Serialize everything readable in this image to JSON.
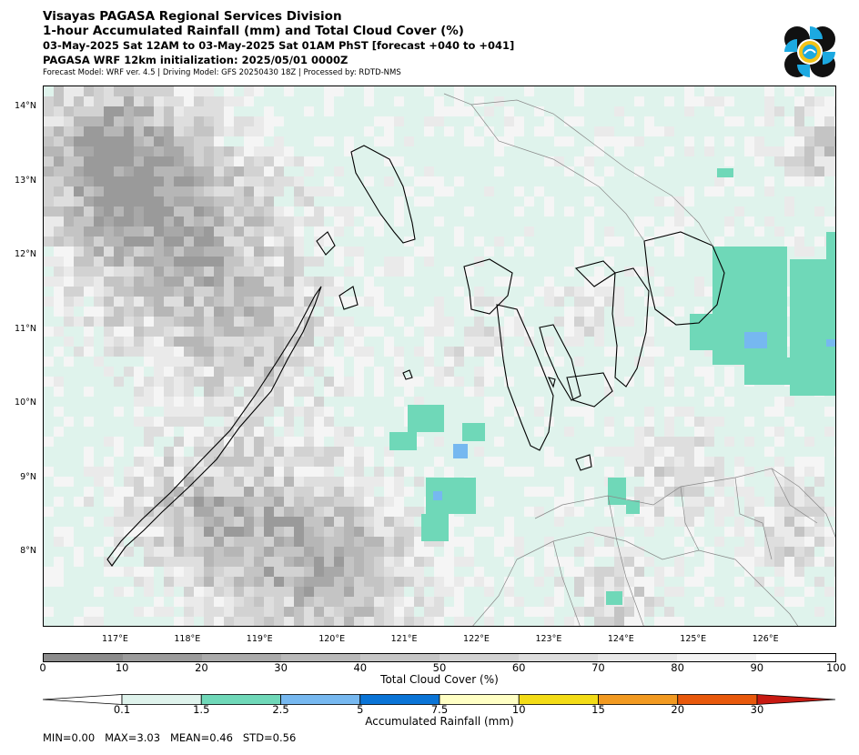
{
  "header": {
    "line1": "Visayas PAGASA Regional Services Division",
    "line2": "1-hour Accumulated Rainfall (mm) and Total Cloud Cover (%)",
    "line3": "03-May-2025 Sat 12AM to 03-May-2025 Sat 01AM PhST [forecast +040 to +041]",
    "line4": "PAGASA WRF 12km initialization: 2025/05/01 0000Z",
    "line5": "Forecast Model: WRF ver. 4.5 | Driving Model: GFS 20250430 18Z | Processed by: RDTD-NMS"
  },
  "logo": {
    "icon": "pagasa-logo-icon"
  },
  "map": {
    "lat_labels": [
      "14°N",
      "13°N",
      "12°N",
      "11°N",
      "10°N",
      "9°N",
      "8°N"
    ],
    "lon_labels": [
      "117°E",
      "118°E",
      "119°E",
      "120°E",
      "121°E",
      "122°E",
      "123°E",
      "124°E",
      "125°E",
      "126°E"
    ],
    "lat_range": [
      7.0,
      14.3
    ],
    "lon_range": [
      116.0,
      126.98
    ],
    "colors": {
      "background": "#dff3ec",
      "rain_light": "#6fd8b8",
      "rain_moderate": "#76b8f0",
      "coast": "#000000",
      "border": "#888888"
    }
  },
  "cloud_bar": {
    "title": "Total Cloud Cover (%)",
    "ticks": [
      "0",
      "10",
      "20",
      "30",
      "40",
      "50",
      "60",
      "70",
      "80",
      "90",
      "100"
    ],
    "colors": [
      "#8c8c8c",
      "#9c9c9c",
      "#ababab",
      "#b9b9b9",
      "#c6c6c6",
      "#d2d2d2",
      "#dddddd",
      "#e8e8e8",
      "#f3f3f3",
      "#ffffff"
    ]
  },
  "rain_bar": {
    "title": "Accumulated Rainfall (mm)",
    "ticks": [
      "0.1",
      "1.5",
      "2.5",
      "5",
      "7.5",
      "10",
      "15",
      "20",
      "30"
    ],
    "colors": [
      "#ffffff",
      "#dff3ec",
      "#6fd8b8",
      "#76b8f0",
      "#0a74d6",
      "#ffffc4",
      "#f3dc17",
      "#f29a21",
      "#e8590c",
      "#c81a12"
    ]
  },
  "stats": {
    "text": "MIN=0.00   MAX=3.03   MEAN=0.46   STD=0.56"
  }
}
